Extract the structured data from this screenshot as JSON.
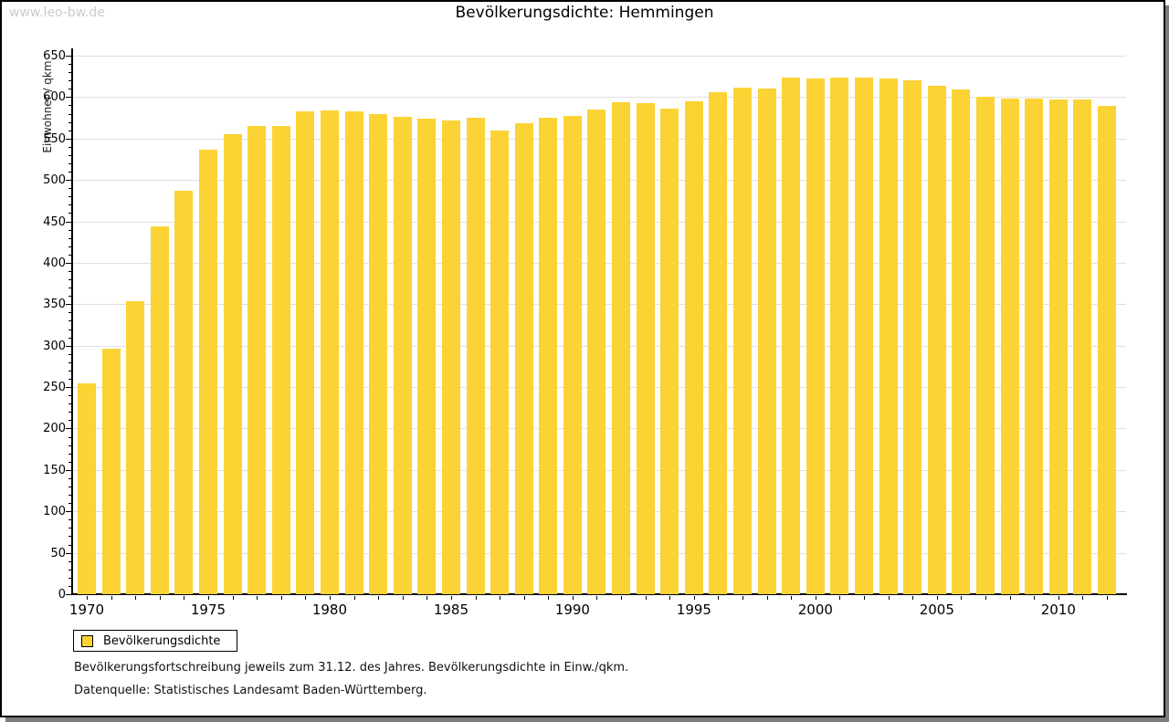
{
  "watermark": "www.leo-bw.de",
  "title": "Bevölkerungsdichte: Hemmingen",
  "y_axis": {
    "label": "Einwohner / qkm"
  },
  "legend": {
    "label": "Bevölkerungsdichte"
  },
  "footnotes": [
    "Bevölkerungsfortschreibung jeweils zum 31.12. des Jahres. Bevölkerungsdichte in Einw./qkm.",
    "Datenquelle: Statistisches Landesamt Baden-Württemberg."
  ],
  "colors": {
    "bar": "#fbd335",
    "grid": "#e0e0e0",
    "axis": "#000000",
    "watermark": "#cbcbcb"
  },
  "chart_data": {
    "type": "bar",
    "title": "Bevölkerungsdichte: Hemmingen",
    "xlabel": "",
    "ylabel": "Einwohner / qkm",
    "ylim": [
      0,
      650
    ],
    "y_major_step": 50,
    "y_minor_step": 10,
    "x_label_every": 5,
    "grid": true,
    "legend_position": "bottom-left",
    "series_name": "Bevölkerungsdichte",
    "categories": [
      1970,
      1971,
      1972,
      1973,
      1974,
      1975,
      1976,
      1977,
      1978,
      1979,
      1980,
      1981,
      1982,
      1983,
      1984,
      1985,
      1986,
      1987,
      1988,
      1989,
      1990,
      1991,
      1992,
      1993,
      1994,
      1995,
      1996,
      1997,
      1998,
      1999,
      2000,
      2001,
      2002,
      2003,
      2004,
      2005,
      2006,
      2007,
      2008,
      2009,
      2010,
      2011,
      2012
    ],
    "values": [
      255,
      296,
      354,
      444,
      487,
      537,
      555,
      565,
      565,
      583,
      584,
      583,
      580,
      576,
      574,
      572,
      575,
      560,
      568,
      575,
      577,
      585,
      594,
      593,
      586,
      595,
      606,
      612,
      610,
      624,
      622,
      624,
      624,
      623,
      620,
      614,
      609,
      600,
      598,
      598,
      597,
      597,
      589
    ]
  }
}
